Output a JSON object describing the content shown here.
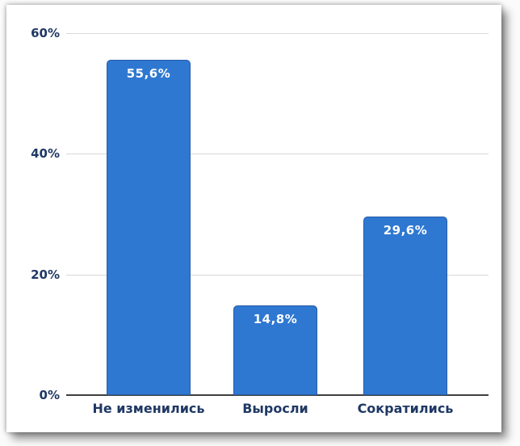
{
  "chart_data": {
    "type": "bar",
    "title": "",
    "xlabel": "",
    "ylabel": "",
    "categories": [
      "Не изменились",
      "Выросли",
      "Сократились"
    ],
    "values": [
      55.6,
      14.8,
      29.6
    ],
    "data_labels": [
      "55,6%",
      "14,8%",
      "29,6%"
    ],
    "y_ticks": [
      {
        "label": "60%",
        "value": 60
      },
      {
        "label": "40%",
        "value": 40
      },
      {
        "label": "20%",
        "value": 20
      },
      {
        "label": "0%",
        "value": 0
      }
    ],
    "ylim": [
      0,
      62
    ],
    "grid": "horizontal",
    "legend": "none",
    "colors": {
      "bar_fill": "#2E78D2",
      "bar_border": "#2A5CA8",
      "axis_text": "#1F3864",
      "gridline": "#D9D9D9",
      "axis_line": "#404040",
      "value_label": "#FFFFFF",
      "card_background": "#FFFFFF"
    }
  }
}
